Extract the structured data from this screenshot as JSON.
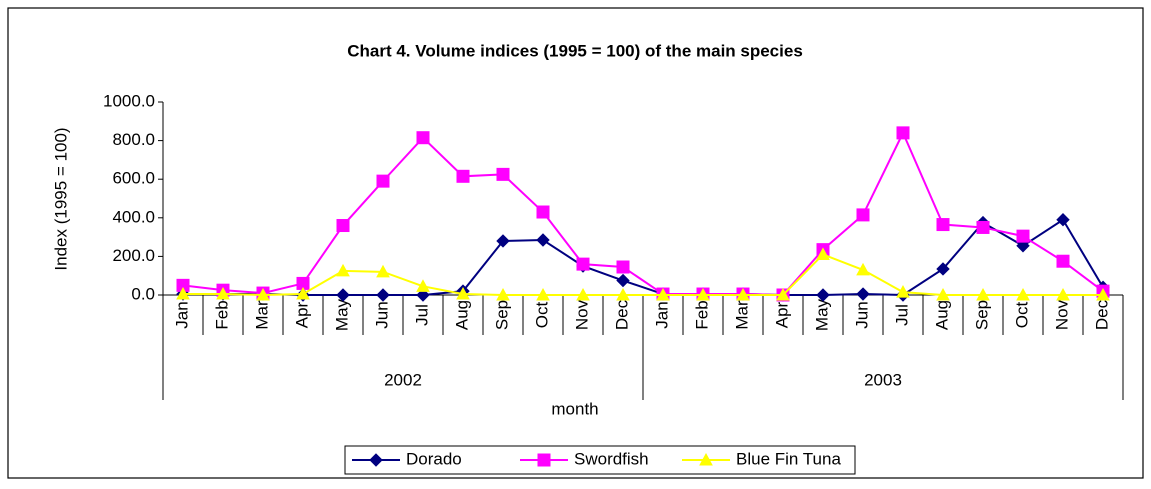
{
  "chart_data": {
    "type": "line",
    "title": "Chart 4.  Volume indices (1995 = 100) of the main species",
    "y_label": "Index (1995 = 100)",
    "x_label": "month",
    "categories": [
      "Jan",
      "Feb",
      "Mar",
      "Apr",
      "May",
      "Jun",
      "Jul",
      "Aug",
      "Sep",
      "Oct",
      "Nov",
      "Dec",
      "Jan",
      "Feb",
      "Mar",
      "Apr",
      "May",
      "Jun",
      "Jul",
      "Aug",
      "Sep",
      "Oct",
      "Nov",
      "Dec"
    ],
    "category_groups": [
      "2002",
      "2003"
    ],
    "series": [
      {
        "name": "Dorado",
        "color": "#000080",
        "marker": "diamond",
        "values": [
          5,
          5,
          5,
          0,
          0,
          0,
          0,
          20,
          280,
          285,
          150,
          75,
          5,
          5,
          5,
          0,
          0,
          5,
          0,
          135,
          375,
          255,
          390,
          40
        ]
      },
      {
        "name": "Swordfish",
        "color": "#ff00ff",
        "marker": "square",
        "values": [
          50,
          25,
          10,
          60,
          360,
          590,
          815,
          615,
          625,
          430,
          160,
          145,
          5,
          5,
          5,
          0,
          235,
          415,
          840,
          365,
          350,
          305,
          175,
          20
        ]
      },
      {
        "name": "Blue Fin Tuna",
        "color": "#ffff00",
        "marker": "triangle",
        "values": [
          5,
          5,
          0,
          5,
          125,
          120,
          45,
          5,
          0,
          0,
          0,
          0,
          0,
          0,
          0,
          0,
          210,
          130,
          15,
          0,
          0,
          0,
          0,
          0
        ]
      }
    ],
    "ylim": [
      0,
      1000
    ],
    "yticks": [
      {
        "value": 0,
        "label": "0.0"
      },
      {
        "value": 200,
        "label": "200.0"
      },
      {
        "value": 400,
        "label": "400.0"
      },
      {
        "value": 600,
        "label": "600.0"
      },
      {
        "value": 800,
        "label": "800.0"
      },
      {
        "value": 1000,
        "label": "1000.0"
      }
    ],
    "legend": "bottom"
  }
}
